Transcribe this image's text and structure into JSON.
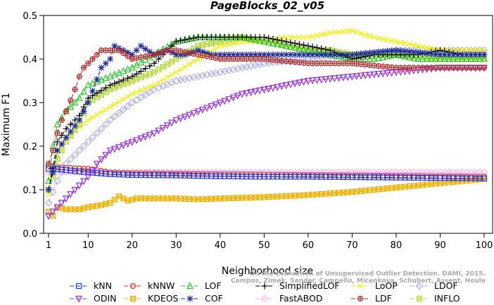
{
  "chart_data": {
    "type": "line",
    "title": "PageBlocks_02_v05",
    "xlabel": "Neighborhood size",
    "ylabel": "Maximum F1",
    "xlim": [
      1,
      100
    ],
    "ylim": [
      0,
      0.5
    ],
    "x_ticks": [
      1,
      10,
      20,
      30,
      40,
      50,
      60,
      70,
      80,
      90,
      100
    ],
    "y_ticks": [
      "0.0",
      "0.1",
      "0.2",
      "0.3",
      "0.4",
      "0.5"
    ],
    "grid": false,
    "legend_position": "bottom",
    "watermark": [
      "Campos, Zimek, Sander, Campello, Micenkova, Schubert, Assent, Houle",
      "On the Evaluation of Unsupervised Outlier Detection. DAMI, 2015."
    ],
    "series": [
      {
        "name": "kNN",
        "color": "#1f3fd0",
        "marker": "square",
        "dash": "6,3",
        "points": [
          [
            1,
            0.148
          ],
          [
            3,
            0.148
          ],
          [
            5,
            0.145
          ],
          [
            10,
            0.14
          ],
          [
            15,
            0.136
          ],
          [
            20,
            0.134
          ],
          [
            30,
            0.133
          ],
          [
            40,
            0.131
          ],
          [
            50,
            0.13
          ],
          [
            60,
            0.13
          ],
          [
            70,
            0.129
          ],
          [
            80,
            0.128
          ],
          [
            90,
            0.127
          ],
          [
            100,
            0.126
          ]
        ]
      },
      {
        "name": "kNNW",
        "color": "#d8322a",
        "marker": "circle",
        "dash": "6,3",
        "points": [
          [
            1,
            0.155
          ],
          [
            3,
            0.152
          ],
          [
            6,
            0.15
          ],
          [
            10,
            0.148
          ],
          [
            15,
            0.14
          ],
          [
            20,
            0.138
          ],
          [
            30,
            0.137
          ],
          [
            40,
            0.136
          ],
          [
            50,
            0.135
          ],
          [
            60,
            0.134
          ],
          [
            70,
            0.133
          ],
          [
            80,
            0.132
          ],
          [
            90,
            0.131
          ],
          [
            100,
            0.13
          ]
        ]
      },
      {
        "name": "LOF",
        "color": "#2fc82f",
        "marker": "triangle",
        "dash": "6,3",
        "points": [
          [
            1,
            0.12
          ],
          [
            2,
            0.2
          ],
          [
            3,
            0.25
          ],
          [
            5,
            0.28
          ],
          [
            8,
            0.31
          ],
          [
            10,
            0.34
          ],
          [
            15,
            0.36
          ],
          [
            20,
            0.38
          ],
          [
            25,
            0.41
          ],
          [
            30,
            0.44
          ],
          [
            35,
            0.45
          ],
          [
            40,
            0.45
          ],
          [
            45,
            0.45
          ],
          [
            50,
            0.44
          ],
          [
            55,
            0.43
          ],
          [
            60,
            0.42
          ],
          [
            65,
            0.41
          ],
          [
            70,
            0.4
          ],
          [
            75,
            0.4
          ],
          [
            80,
            0.41
          ],
          [
            85,
            0.4
          ],
          [
            90,
            0.4
          ],
          [
            95,
            0.4
          ],
          [
            100,
            0.4
          ]
        ]
      },
      {
        "name": "SimplifiedLOF",
        "color": "#000000",
        "marker": "plus",
        "dash": "6,3",
        "points": [
          [
            1,
            0.1
          ],
          [
            2,
            0.15
          ],
          [
            3,
            0.21
          ],
          [
            5,
            0.24
          ],
          [
            8,
            0.27
          ],
          [
            10,
            0.31
          ],
          [
            15,
            0.34
          ],
          [
            20,
            0.36
          ],
          [
            25,
            0.39
          ],
          [
            30,
            0.44
          ],
          [
            35,
            0.45
          ],
          [
            40,
            0.45
          ],
          [
            45,
            0.45
          ],
          [
            50,
            0.45
          ],
          [
            55,
            0.44
          ],
          [
            60,
            0.43
          ],
          [
            65,
            0.42
          ],
          [
            70,
            0.4
          ],
          [
            75,
            0.41
          ],
          [
            80,
            0.41
          ],
          [
            85,
            0.41
          ],
          [
            90,
            0.42
          ],
          [
            95,
            0.41
          ],
          [
            100,
            0.41
          ]
        ]
      },
      {
        "name": "LoOP",
        "color": "#f0f000",
        "marker": "x",
        "dash": "6,3",
        "points": [
          [
            1,
            0.09
          ],
          [
            2,
            0.14
          ],
          [
            3,
            0.18
          ],
          [
            5,
            0.22
          ],
          [
            10,
            0.26
          ],
          [
            15,
            0.29
          ],
          [
            20,
            0.32
          ],
          [
            25,
            0.34
          ],
          [
            30,
            0.37
          ],
          [
            35,
            0.4
          ],
          [
            40,
            0.43
          ],
          [
            45,
            0.44
          ],
          [
            50,
            0.44
          ],
          [
            55,
            0.45
          ],
          [
            60,
            0.45
          ],
          [
            65,
            0.46
          ],
          [
            70,
            0.465
          ],
          [
            75,
            0.45
          ],
          [
            80,
            0.44
          ],
          [
            85,
            0.43
          ],
          [
            90,
            0.42
          ],
          [
            95,
            0.42
          ],
          [
            100,
            0.42
          ]
        ]
      },
      {
        "name": "LDOF",
        "color": "#b0b0e8",
        "marker": "diamond",
        "dash": "6,3",
        "points": [
          [
            1,
            0.07
          ],
          [
            3,
            0.12
          ],
          [
            5,
            0.16
          ],
          [
            8,
            0.19
          ],
          [
            10,
            0.21
          ],
          [
            15,
            0.26
          ],
          [
            20,
            0.3
          ],
          [
            25,
            0.33
          ],
          [
            30,
            0.35
          ],
          [
            35,
            0.36
          ],
          [
            40,
            0.37
          ],
          [
            50,
            0.39
          ],
          [
            60,
            0.4
          ],
          [
            70,
            0.41
          ],
          [
            80,
            0.42
          ],
          [
            90,
            0.42
          ],
          [
            100,
            0.42
          ]
        ]
      },
      {
        "name": "ODIN",
        "color": "#9a2fd8",
        "marker": "triangle-down",
        "dash": "6,3",
        "points": [
          [
            1,
            0.04
          ],
          [
            3,
            0.06
          ],
          [
            5,
            0.08
          ],
          [
            8,
            0.11
          ],
          [
            10,
            0.13
          ],
          [
            12,
            0.16
          ],
          [
            15,
            0.19
          ],
          [
            20,
            0.21
          ],
          [
            25,
            0.23
          ],
          [
            30,
            0.26
          ],
          [
            35,
            0.28
          ],
          [
            40,
            0.3
          ],
          [
            45,
            0.32
          ],
          [
            50,
            0.33
          ],
          [
            60,
            0.35
          ],
          [
            70,
            0.36
          ],
          [
            80,
            0.37
          ],
          [
            90,
            0.38
          ],
          [
            100,
            0.38
          ]
        ]
      },
      {
        "name": "KDEOS",
        "color": "#f0b000",
        "marker": "square-x",
        "dash": "6,3",
        "points": [
          [
            1,
            0.05
          ],
          [
            2,
            0.04
          ],
          [
            3,
            0.06
          ],
          [
            5,
            0.055
          ],
          [
            8,
            0.055
          ],
          [
            10,
            0.06
          ],
          [
            13,
            0.065
          ],
          [
            15,
            0.07
          ],
          [
            17,
            0.085
          ],
          [
            19,
            0.075
          ],
          [
            21,
            0.08
          ],
          [
            25,
            0.08
          ],
          [
            30,
            0.08
          ],
          [
            35,
            0.078
          ],
          [
            40,
            0.08
          ],
          [
            50,
            0.083
          ],
          [
            60,
            0.088
          ],
          [
            70,
            0.095
          ],
          [
            80,
            0.105
          ],
          [
            90,
            0.115
          ],
          [
            100,
            0.125
          ]
        ]
      },
      {
        "name": "COF",
        "color": "#1c2a9a",
        "marker": "asterisk",
        "dash": "6,3",
        "points": [
          [
            1,
            0.1
          ],
          [
            2,
            0.14
          ],
          [
            3,
            0.19
          ],
          [
            5,
            0.22
          ],
          [
            8,
            0.26
          ],
          [
            10,
            0.3
          ],
          [
            13,
            0.38
          ],
          [
            15,
            0.4
          ],
          [
            16,
            0.43
          ],
          [
            18,
            0.42
          ],
          [
            20,
            0.41
          ],
          [
            22,
            0.43
          ],
          [
            25,
            0.41
          ],
          [
            28,
            0.42
          ],
          [
            30,
            0.41
          ],
          [
            32,
            0.41
          ],
          [
            35,
            0.42
          ],
          [
            38,
            0.41
          ],
          [
            40,
            0.41
          ],
          [
            45,
            0.41
          ],
          [
            50,
            0.41
          ],
          [
            55,
            0.41
          ],
          [
            60,
            0.41
          ],
          [
            65,
            0.41
          ],
          [
            70,
            0.41
          ],
          [
            80,
            0.42
          ],
          [
            90,
            0.41
          ],
          [
            100,
            0.41
          ]
        ]
      },
      {
        "name": "FastABOD",
        "color": "#ffb0ff",
        "marker": "diamond",
        "dash": "6,3",
        "points": [
          [
            1,
            0.14
          ],
          [
            5,
            0.14
          ],
          [
            10,
            0.14
          ],
          [
            20,
            0.14
          ],
          [
            30,
            0.14
          ],
          [
            40,
            0.14
          ],
          [
            50,
            0.14
          ],
          [
            60,
            0.14
          ],
          [
            70,
            0.14
          ],
          [
            80,
            0.14
          ],
          [
            90,
            0.14
          ],
          [
            100,
            0.14
          ]
        ]
      },
      {
        "name": "LDF",
        "color": "#b03030",
        "marker": "circle-plus",
        "dash": "6,3",
        "points": [
          [
            1,
            0.16
          ],
          [
            2,
            0.19
          ],
          [
            3,
            0.23
          ],
          [
            4,
            0.26
          ],
          [
            5,
            0.28
          ],
          [
            7,
            0.33
          ],
          [
            8,
            0.36
          ],
          [
            9,
            0.38
          ],
          [
            10,
            0.39
          ],
          [
            12,
            0.41
          ],
          [
            13,
            0.42
          ],
          [
            15,
            0.42
          ],
          [
            17,
            0.42
          ],
          [
            20,
            0.4
          ],
          [
            25,
            0.41
          ],
          [
            28,
            0.42
          ],
          [
            30,
            0.42
          ],
          [
            35,
            0.41
          ],
          [
            40,
            0.4
          ],
          [
            50,
            0.4
          ],
          [
            60,
            0.39
          ],
          [
            70,
            0.39
          ],
          [
            80,
            0.38
          ],
          [
            90,
            0.38
          ],
          [
            100,
            0.38
          ]
        ]
      },
      {
        "name": "INFLO",
        "color": "#b8d840",
        "marker": "square-x",
        "dash": "6,3",
        "points": [
          [
            1,
            0.1
          ],
          [
            2,
            0.13
          ],
          [
            3,
            0.17
          ],
          [
            5,
            0.21
          ],
          [
            8,
            0.25
          ],
          [
            10,
            0.3
          ],
          [
            15,
            0.33
          ],
          [
            20,
            0.35
          ],
          [
            25,
            0.37
          ],
          [
            30,
            0.4
          ],
          [
            35,
            0.43
          ],
          [
            40,
            0.44
          ],
          [
            45,
            0.45
          ],
          [
            50,
            0.44
          ],
          [
            55,
            0.43
          ],
          [
            60,
            0.42
          ],
          [
            65,
            0.42
          ],
          [
            70,
            0.41
          ],
          [
            80,
            0.41
          ],
          [
            90,
            0.4
          ],
          [
            100,
            0.4
          ]
        ]
      }
    ],
    "legend_rows": [
      [
        "kNN",
        "kNNW",
        "LOF",
        "SimplifiedLOF",
        "LoOP",
        "LDOF"
      ],
      [
        "ODIN",
        "KDEOS",
        "COF",
        "FastABOD",
        "LDF",
        "INFLO"
      ]
    ]
  }
}
